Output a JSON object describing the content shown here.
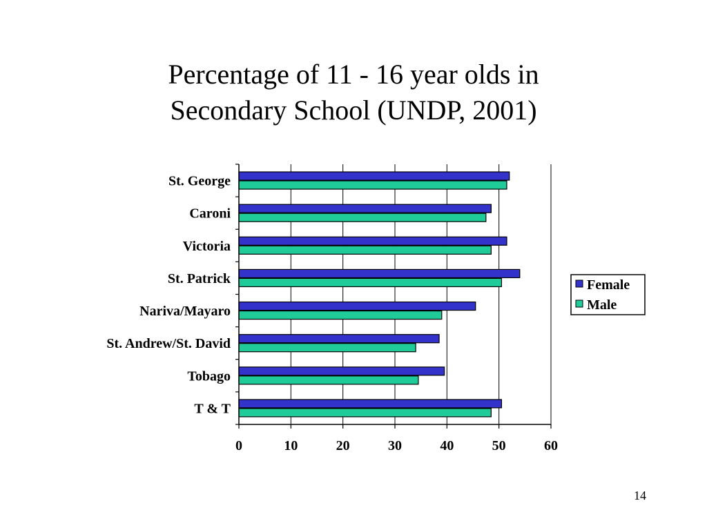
{
  "slide": {
    "title_line1": "Percentage of 11 - 16 year olds in",
    "title_line2": "Secondary School (UNDP, 2001)",
    "page_number": "14"
  },
  "colors": {
    "female": "#3333cc",
    "male": "#1fcc99",
    "gridline": "#000000",
    "border": "#000000"
  },
  "chart_data": {
    "type": "bar",
    "orientation": "horizontal",
    "title": "Percentage of 11 - 16 year olds in Secondary School (UNDP, 2001)",
    "categories": [
      "St. George",
      "Caroni",
      "Victoria",
      "St. Patrick",
      "Nariva/Mayaro",
      "St. Andrew/St. David",
      "Tobago",
      "T & T"
    ],
    "series": [
      {
        "name": "Female",
        "values": [
          52,
          48.5,
          51.5,
          54,
          45.5,
          38.5,
          39.5,
          50.5
        ]
      },
      {
        "name": "Male",
        "values": [
          51.5,
          47.5,
          48.5,
          50.5,
          39,
          34,
          34.5,
          48.5
        ]
      }
    ],
    "xlim": [
      0,
      60
    ],
    "xticks": [
      0,
      10,
      20,
      30,
      40,
      50,
      60
    ],
    "xlabel": "",
    "ylabel": "",
    "grid": "vertical major gridlines",
    "legend": "right"
  }
}
